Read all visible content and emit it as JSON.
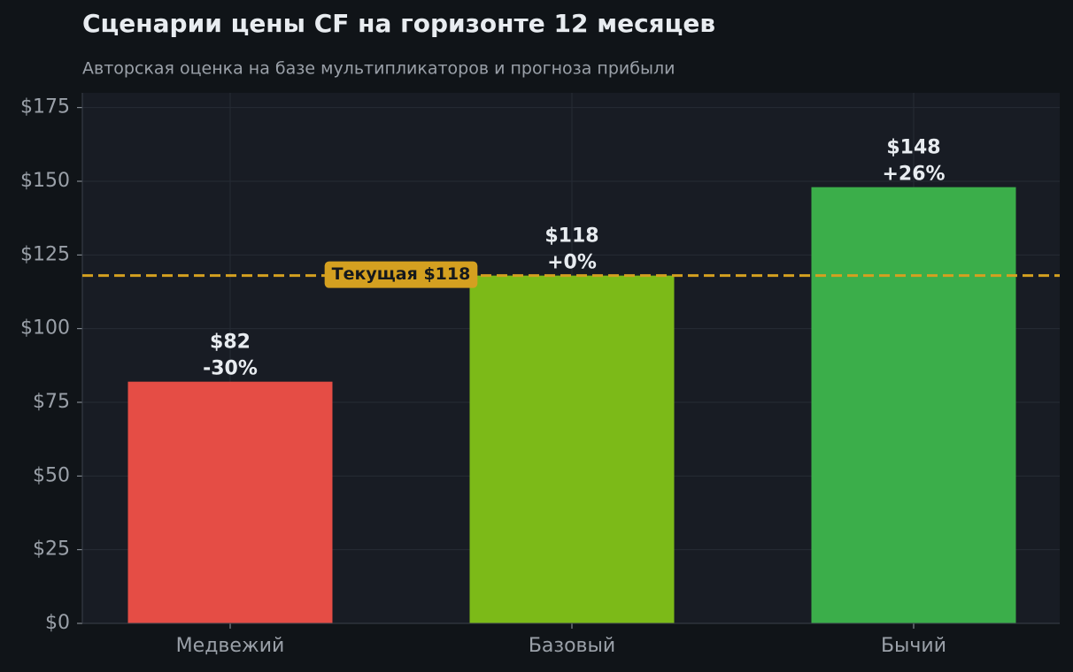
{
  "chart_data": {
    "type": "bar",
    "title": "Сценарии цены CF на горизонте 12 месяцев",
    "subtitle": "Авторская оценка на базе мультипликаторов и прогноза прибыли",
    "categories": [
      "Медвежий",
      "Базовый",
      "Бычий"
    ],
    "values": [
      82,
      118,
      148
    ],
    "value_labels": [
      "$82",
      "$118",
      "$148"
    ],
    "change_labels": [
      "-30%",
      "+0%",
      "+26%"
    ],
    "colors": [
      "#e54d45",
      "#7cba18",
      "#3bae4a"
    ],
    "ylim": [
      0,
      180
    ],
    "yticks": [
      {
        "value": 0,
        "label": "$0"
      },
      {
        "value": 25,
        "label": "$25"
      },
      {
        "value": 50,
        "label": "$50"
      },
      {
        "value": 75,
        "label": "$75"
      },
      {
        "value": 100,
        "label": "$100"
      },
      {
        "value": 125,
        "label": "$125"
      },
      {
        "value": 150,
        "label": "$150"
      },
      {
        "value": 175,
        "label": "$175"
      }
    ],
    "grid": true,
    "reference_line": {
      "value": 118,
      "label": "Текущая $118",
      "color": "#d4a020"
    }
  }
}
